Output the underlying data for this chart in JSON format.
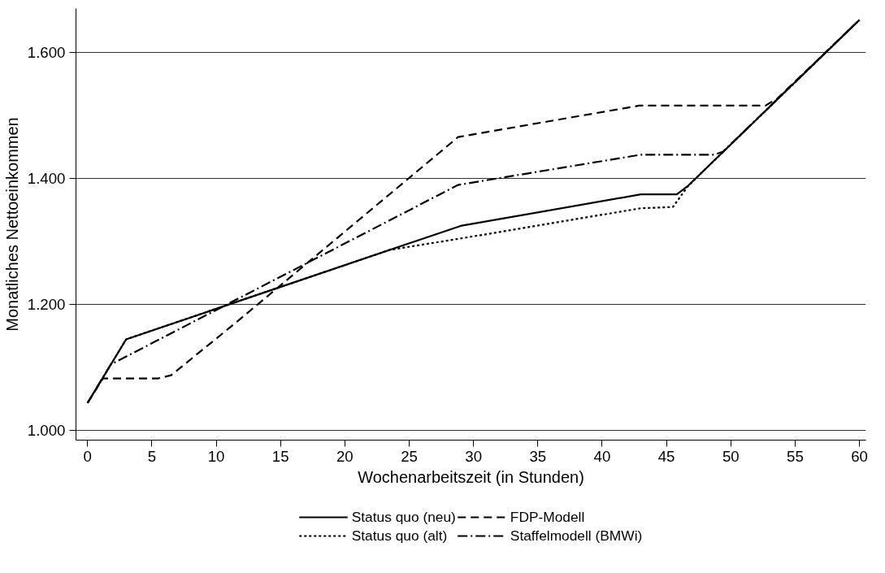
{
  "chart_data": {
    "type": "line",
    "xlabel": "Wochenarbeitszeit (in Stunden)",
    "ylabel": "Monatliches Nettoeinkommen",
    "xlim": [
      -0.9,
      60.5
    ],
    "xticks": [
      0,
      5,
      10,
      15,
      20,
      25,
      30,
      35,
      40,
      45,
      50,
      55,
      60
    ],
    "ylim": [
      985,
      1670
    ],
    "yticks": [
      {
        "value": 1000,
        "label": "1.000"
      },
      {
        "value": 1200,
        "label": "1.200"
      },
      {
        "value": 1400,
        "label": "1.400"
      },
      {
        "value": 1600,
        "label": "1.600"
      }
    ],
    "grid": "y",
    "legend": "bottom",
    "marker": "none",
    "series": [
      {
        "name": "Status quo (neu)",
        "color": "#000000",
        "line_style": "solid",
        "x": [
          0,
          3,
          29,
          43,
          45.8,
          46.7,
          60
        ],
        "values": [
          1044,
          1145,
          1325,
          1375,
          1375,
          1389,
          1652
        ]
      },
      {
        "name": "FDP-Modell",
        "color": "#000000",
        "line_style": "dashed",
        "x": [
          0,
          1.2,
          5.5,
          6.5,
          11.5,
          28.8,
          42.9,
          52.7,
          53.6,
          60
        ],
        "values": [
          1044,
          1083,
          1083,
          1088,
          1171,
          1466,
          1516,
          1516,
          1527,
          1652
        ]
      },
      {
        "name": "Status quo (alt)",
        "color": "#000000",
        "line_style": "dotted",
        "x": [
          0,
          3,
          23.5,
          29,
          43,
          45.5,
          46.7,
          60
        ],
        "values": [
          1044,
          1145,
          1287,
          1305,
          1353,
          1355,
          1389,
          1652
        ]
      },
      {
        "name": "Staffelmodell (BMWi)",
        "color": "#000000",
        "line_style": "dashdot",
        "x": [
          0,
          1.8,
          28.8,
          43,
          48.7,
          49.4,
          60
        ],
        "values": [
          1044,
          1105,
          1390,
          1438,
          1438,
          1443,
          1652
        ]
      }
    ]
  }
}
